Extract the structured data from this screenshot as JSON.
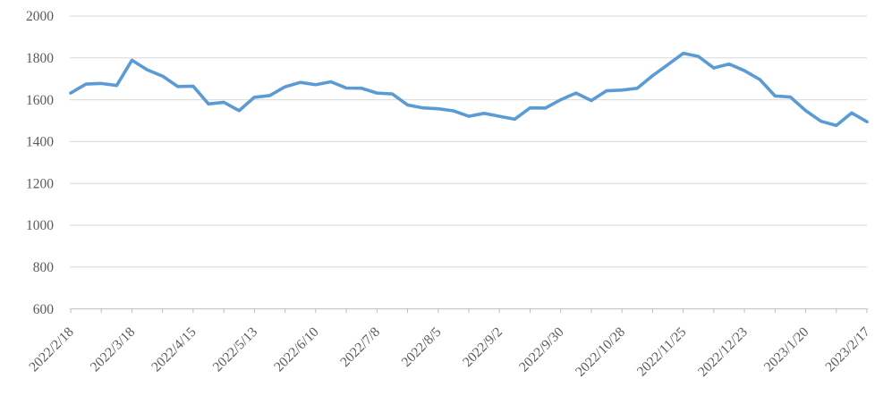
{
  "page": {
    "background_color": "#ffffff"
  },
  "chart_data": {
    "type": "line",
    "title": "",
    "legend": "none",
    "grid": "horizontal",
    "x_labels": [
      "2022/2/18",
      "2022/3/18",
      "2022/4/15",
      "2022/5/13",
      "2022/6/10",
      "2022/7/8",
      "2022/8/5",
      "2022/9/2",
      "2022/9/30",
      "2022/10/28",
      "2022/11/25",
      "2022/12/23",
      "2023/1/20",
      "2023/2/17"
    ],
    "x_label_every_n_points": 4,
    "x_tick_every_n_points": 2,
    "x_interval": "weekly",
    "values": [
      1632,
      1675,
      1678,
      1668,
      1789,
      1743,
      1713,
      1663,
      1665,
      1580,
      1588,
      1548,
      1612,
      1620,
      1662,
      1683,
      1672,
      1686,
      1656,
      1655,
      1632,
      1628,
      1575,
      1561,
      1557,
      1547,
      1521,
      1535,
      1521,
      1507,
      1561,
      1560,
      1600,
      1632,
      1596,
      1643,
      1646,
      1655,
      1715,
      1768,
      1822,
      1807,
      1752,
      1771,
      1739,
      1697,
      1618,
      1613,
      1548,
      1497,
      1477,
      1537,
      1495
    ],
    "ylim": [
      600,
      2000
    ],
    "y_ticks": [
      600,
      800,
      1000,
      1200,
      1400,
      1600,
      1800,
      2000
    ],
    "xlabel": "",
    "ylabel": "",
    "line_color": "#5B9BD5",
    "gridline_color": "#D9D9D9",
    "axis_line_color": "#BFBFBF",
    "tick_color": "#BFBFBF",
    "label_color": "#595959"
  }
}
